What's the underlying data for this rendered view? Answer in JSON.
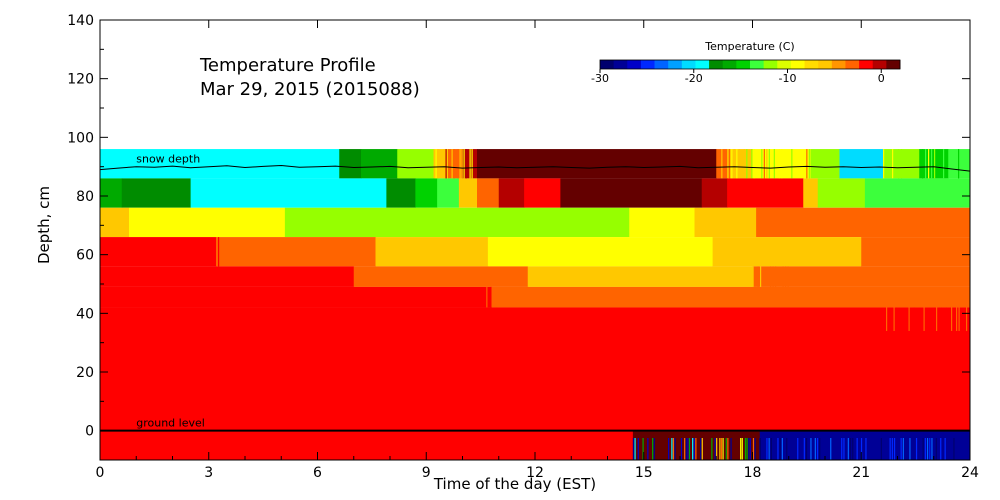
{
  "chart_data": {
    "type": "heatmap",
    "title_line1": "Temperature Profile",
    "title_line2": "Mar 29, 2015 (2015088)",
    "xlabel": "Time of the day (EST)",
    "ylabel": "Depth, cm",
    "xlim": [
      0,
      24
    ],
    "ylim": [
      -10,
      140
    ],
    "xticks": [
      0,
      3,
      6,
      9,
      12,
      15,
      18,
      21,
      24
    ],
    "yticks": [
      0,
      20,
      40,
      60,
      80,
      100,
      120,
      140
    ],
    "colorbar": {
      "label": "Temperature (C)",
      "range": [
        -30,
        2
      ],
      "ticks": [
        -30,
        -20,
        -10,
        0
      ],
      "colors": [
        "#00006e",
        "#000096",
        "#0000c8",
        "#0028ff",
        "#0064ff",
        "#00a0ff",
        "#00dcff",
        "#00ffff",
        "#008c00",
        "#00aa00",
        "#00d200",
        "#3cff3c",
        "#96ff00",
        "#dcff00",
        "#ffff00",
        "#ffdc00",
        "#ffc800",
        "#ff9600",
        "#ff6400",
        "#ff0000",
        "#b40000",
        "#640000"
      ]
    },
    "layers": [
      {
        "depth_range": [
          86,
          96
        ],
        "segments": [
          {
            "x": [
              0,
              6.6
            ],
            "color": "#00ffff"
          },
          {
            "x": [
              6.6,
              7.2
            ],
            "color": "#008c00"
          },
          {
            "x": [
              7.2,
              8.2
            ],
            "color": "#00aa00"
          },
          {
            "x": [
              8.2,
              9.2
            ],
            "color": "#96ff00"
          },
          {
            "x": [
              9.2,
              9.6
            ],
            "color": "#ffc800"
          },
          {
            "x": [
              9.6,
              10.0
            ],
            "color": "#ff6400"
          },
          {
            "x": [
              10.0,
              10.4
            ],
            "color": "#b40000"
          },
          {
            "x": [
              10.4,
              17.0
            ],
            "color": "#640000"
          },
          {
            "x": [
              17.0,
              17.3
            ],
            "color": "#ff6400"
          },
          {
            "x": [
              17.3,
              18.0
            ],
            "color": "#ffc800"
          },
          {
            "x": [
              18.0,
              19.6
            ],
            "color": "#ffff00"
          },
          {
            "x": [
              19.6,
              20.4
            ],
            "color": "#96ff00"
          },
          {
            "x": [
              20.4,
              21.6
            ],
            "color": "#00dcff"
          },
          {
            "x": [
              21.6,
              22.6
            ],
            "color": "#96ff00"
          },
          {
            "x": [
              22.6,
              23.4
            ],
            "color": "#00d200"
          },
          {
            "x": [
              23.4,
              24
            ],
            "color": "#3cff3c"
          }
        ]
      },
      {
        "depth_range": [
          76,
          86
        ],
        "segments": [
          {
            "x": [
              0,
              0.6
            ],
            "color": "#00aa00"
          },
          {
            "x": [
              0.6,
              2.5
            ],
            "color": "#008c00"
          },
          {
            "x": [
              2.5,
              7.9
            ],
            "color": "#00ffff"
          },
          {
            "x": [
              7.9,
              8.7
            ],
            "color": "#008c00"
          },
          {
            "x": [
              8.7,
              9.3
            ],
            "color": "#00d200"
          },
          {
            "x": [
              9.3,
              9.9
            ],
            "color": "#3cff3c"
          },
          {
            "x": [
              9.9,
              10.4
            ],
            "color": "#ffc800"
          },
          {
            "x": [
              10.4,
              11.0
            ],
            "color": "#ff6400"
          },
          {
            "x": [
              11.0,
              11.7
            ],
            "color": "#b40000"
          },
          {
            "x": [
              11.7,
              12.7
            ],
            "color": "#ff0000"
          },
          {
            "x": [
              12.7,
              16.6
            ],
            "color": "#640000"
          },
          {
            "x": [
              16.6,
              17.3
            ],
            "color": "#b40000"
          },
          {
            "x": [
              17.3,
              19.4
            ],
            "color": "#ff0000"
          },
          {
            "x": [
              19.4,
              19.8
            ],
            "color": "#ffc800"
          },
          {
            "x": [
              19.8,
              21.1
            ],
            "color": "#96ff00"
          },
          {
            "x": [
              21.1,
              24
            ],
            "color": "#3cff3c"
          }
        ]
      },
      {
        "depth_range": [
          66,
          76
        ],
        "segments": [
          {
            "x": [
              0,
              0.8
            ],
            "color": "#ffc800"
          },
          {
            "x": [
              0.8,
              5.1
            ],
            "color": "#ffff00"
          },
          {
            "x": [
              5.1,
              14.6
            ],
            "color": "#96ff00"
          },
          {
            "x": [
              14.6,
              16.4
            ],
            "color": "#ffff00"
          },
          {
            "x": [
              16.4,
              18.1
            ],
            "color": "#ffc800"
          },
          {
            "x": [
              18.1,
              24
            ],
            "color": "#ff6400"
          }
        ]
      },
      {
        "depth_range": [
          56,
          66
        ],
        "segments": [
          {
            "x": [
              0,
              3.2
            ],
            "color": "#ff0000"
          },
          {
            "x": [
              3.2,
              7.6
            ],
            "color": "#ff6400"
          },
          {
            "x": [
              7.6,
              10.7
            ],
            "color": "#ffc800"
          },
          {
            "x": [
              10.7,
              16.9
            ],
            "color": "#ffff00"
          },
          {
            "x": [
              16.9,
              21.0
            ],
            "color": "#ffc800"
          },
          {
            "x": [
              21.0,
              24
            ],
            "color": "#ff6400"
          }
        ]
      },
      {
        "depth_range": [
          49,
          56
        ],
        "segments": [
          {
            "x": [
              0,
              7.0
            ],
            "color": "#ff0000"
          },
          {
            "x": [
              7.0,
              11.8
            ],
            "color": "#ff6400"
          },
          {
            "x": [
              11.8,
              18.0
            ],
            "color": "#ffc800"
          },
          {
            "x": [
              18.0,
              24
            ],
            "color": "#ff6400"
          }
        ]
      },
      {
        "depth_range": [
          42,
          49
        ],
        "segments": [
          {
            "x": [
              0,
              10.8
            ],
            "color": "#ff0000"
          },
          {
            "x": [
              10.8,
              24
            ],
            "color": "#ff6400"
          }
        ]
      },
      {
        "depth_range": [
          0,
          42
        ],
        "segments": [
          {
            "x": [
              0,
              24
            ],
            "color": "#ff0000"
          }
        ]
      },
      {
        "depth_range": [
          -10,
          0
        ],
        "segments": [
          {
            "x": [
              0,
              14.7
            ],
            "color": "#ff0000"
          },
          {
            "x": [
              14.7,
              18.2
            ],
            "color": "#640000"
          },
          {
            "x": [
              18.2,
              24
            ],
            "color": "#000096"
          }
        ]
      }
    ],
    "snow_depth": {
      "label": "snow depth",
      "x": [
        0,
        0.5,
        1,
        1.5,
        2,
        2.5,
        3,
        3.5,
        4,
        4.5,
        5,
        5.5,
        6,
        6.5,
        7,
        7.5,
        8,
        8.5,
        9,
        9.5,
        10,
        10.5,
        11,
        11.5,
        12,
        12.5,
        13,
        13.5,
        14,
        14.5,
        15,
        15.5,
        16,
        16.5,
        17,
        17.5,
        18,
        18.5,
        19,
        19.5,
        20,
        20.5,
        21,
        21.5,
        22,
        22.5,
        23,
        23.5,
        24
      ],
      "y": [
        89.0,
        89.5,
        90.0,
        89.8,
        90.2,
        89.6,
        90.0,
        90.3,
        89.7,
        90.1,
        90.4,
        89.8,
        90.0,
        90.2,
        89.7,
        89.9,
        90.1,
        89.6,
        89.8,
        90.0,
        89.5,
        89.7,
        89.9,
        89.6,
        89.8,
        90.0,
        89.7,
        89.5,
        89.8,
        90.0,
        89.7,
        89.9,
        90.1,
        89.6,
        89.8,
        90.0,
        89.7,
        89.5,
        89.9,
        90.1,
        89.8,
        90.0,
        89.7,
        89.9,
        89.6,
        89.8,
        90.0,
        89.2,
        88.5
      ]
    },
    "ground_level": {
      "label": "ground level",
      "y": 0
    }
  }
}
